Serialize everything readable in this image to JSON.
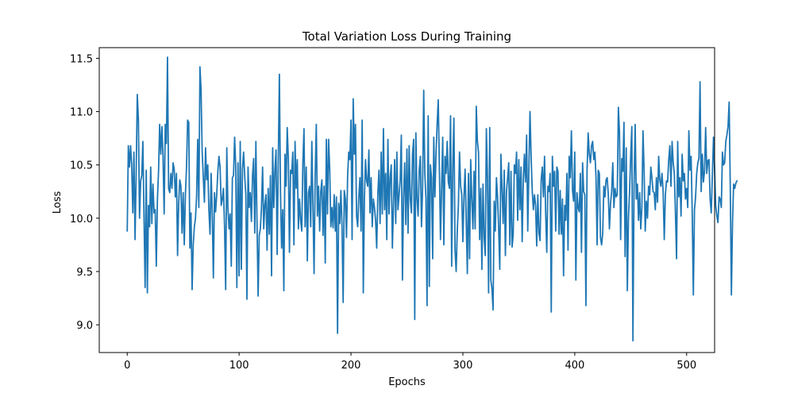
{
  "chart_data": {
    "type": "line",
    "title": "Total Variation Loss During Training",
    "xlabel": "Epochs",
    "ylabel": "Loss",
    "xlim": [
      -25,
      525
    ],
    "ylim": [
      8.74,
      11.6
    ],
    "xticks": [
      0,
      100,
      200,
      300,
      400,
      500
    ],
    "xtick_labels": [
      "0",
      "100",
      "200",
      "300",
      "400",
      "500"
    ],
    "yticks": [
      9.0,
      9.5,
      10.0,
      10.5,
      11.0,
      11.5
    ],
    "ytick_labels": [
      "9.0",
      "9.5",
      "10.0",
      "10.5",
      "11.0",
      "11.5"
    ],
    "grid": false,
    "series": [
      {
        "color": "#1f77b4",
        "x_start": 0,
        "x_step": 1,
        "values": [
          9.88,
          10.68,
          10.48,
          10.68,
          10.5,
          10.05,
          10.62,
          9.8,
          10.42,
          11.16,
          10.92,
          10.0,
          10.35,
          10.4,
          10.72,
          10.02,
          9.35,
          10.45,
          9.3,
          10.12,
          9.92,
          10.48,
          9.95,
          10.32,
          10.05,
          10.08,
          9.55,
          10.18,
          10.44,
          10.88,
          10.6,
          10.86,
          10.58,
          10.04,
          10.88,
          10.7,
          11.51,
          10.28,
          10.24,
          10.42,
          10.28,
          10.52,
          10.46,
          10.2,
          10.42,
          9.65,
          10.14,
          10.36,
          10.3,
          9.86,
          10.24,
          9.75,
          10.22,
          10.48,
          10.92,
          10.9,
          9.72,
          10.05,
          9.33,
          9.75,
          9.92,
          10.0,
          10.2,
          10.74,
          10.1,
          11.42,
          11.2,
          10.62,
          10.38,
          10.15,
          10.66,
          10.36,
          10.5,
          10.08,
          9.85,
          10.42,
          10.05,
          9.44,
          10.24,
          10.06,
          10.22,
          10.44,
          10.58,
          10.48,
          10.12,
          10.18,
          10.28,
          9.92,
          9.33,
          10.66,
          10.1,
          9.9,
          10.04,
          9.55,
          10.38,
          10.4,
          10.76,
          10.48,
          9.35,
          10.52,
          9.46,
          10.72,
          9.52,
          10.46,
          10.62,
          10.4,
          10.22,
          9.24,
          10.48,
          10.1,
          10.24,
          9.97,
          10.4,
          10.56,
          9.86,
          10.72,
          9.96,
          9.27,
          9.84,
          9.9,
          10.1,
          10.48,
          9.9,
          10.12,
          10.22,
          9.7,
          10.28,
          9.85,
          10.4,
          9.46,
          10.66,
          10.1,
          10.45,
          10.64,
          9.66,
          10.52,
          11.35,
          10.24,
          9.72,
          10.08,
          9.32,
          10.6,
          10.3,
          10.85,
          10.56,
          9.68,
          10.45,
          10.42,
          10.62,
          9.75,
          10.72,
          10.28,
          10.55,
          9.9,
          10.18,
          9.98,
          9.88,
          10.52,
          10.84,
          9.92,
          10.48,
          9.6,
          10.24,
          10.3,
          9.92,
          10.72,
          10.12,
          9.48,
          10.4,
          10.88,
          10.02,
          10.3,
          9.88,
          10.25,
          10.36,
          9.84,
          10.3,
          9.58,
          10.74,
          10.04,
          10.74,
          10.45,
          9.92,
          10.1,
          9.91,
          10.22,
          9.88,
          10.2,
          8.92,
          10.14,
          9.95,
          10.26,
          9.92,
          9.21,
          10.26,
          10.18,
          9.82,
          10.4,
          10.62,
          10.55,
          10.92,
          9.8,
          11.12,
          10.6,
          10.88,
          10.02,
          9.92,
          10.2,
          10.38,
          9.88,
          10.92,
          9.3,
          10.18,
          10.55,
          10.35,
          10.3,
          10.64,
          10.05,
          10.38,
          9.92,
          10.18,
          10.1,
          9.98,
          9.72,
          10.22,
          10.45,
          9.95,
          10.62,
          10.04,
          10.84,
          10.08,
          10.42,
          9.8,
          10.74,
          10.04,
          10.38,
          10.5,
          9.72,
          10.12,
          10.55,
          9.95,
          10.62,
          10.08,
          10.22,
          10.36,
          10.78,
          9.42,
          10.2,
          10.52,
          9.94,
          10.65,
          9.86,
          10.68,
          10.18,
          10.05,
          10.6,
          10.74,
          9.05,
          10.8,
          10.18,
          10.02,
          10.45,
          10.58,
          9.92,
          10.28,
          11.2,
          10.42,
          10.18,
          9.18,
          10.96,
          9.36,
          10.5,
          10.38,
          9.62,
          10.76,
          10.2,
          10.6,
          10.88,
          11.11,
          10.48,
          9.8,
          10.28,
          10.76,
          9.75,
          10.58,
          10.42,
          10.72,
          10.34,
          10.28,
          10.96,
          9.55,
          10.48,
          10.94,
          9.7,
          9.5,
          9.88,
          10.12,
          10.62,
          10.3,
          10.22,
          9.78,
          10.2,
          10.46,
          9.98,
          9.48,
          10.42,
          9.62,
          10.55,
          10.18,
          9.9,
          10.44,
          9.9,
          11.05,
          10.72,
          10.62,
          9.8,
          10.28,
          9.52,
          10.32,
          9.82,
          9.65,
          10.84,
          10.38,
          9.3,
          10.85,
          9.42,
          9.34,
          9.14,
          10.16,
          9.88,
          10.38,
          10.2,
          9.9,
          9.52,
          10.6,
          10.28,
          9.95,
          10.45,
          9.65,
          10.25,
          10.38,
          10.52,
          9.75,
          10.44,
          9.73,
          9.85,
          10.5,
          10.42,
          10.62,
          9.98,
          10.55,
          10.08,
          10.48,
          9.78,
          10.36,
          10.6,
          10.34,
          10.78,
          9.88,
          10.45,
          11.0,
          10.58,
          10.26,
          10.08,
          10.22,
          10.12,
          9.74,
          10.22,
          9.86,
          9.79,
          10.36,
          10.48,
          10.2,
          10.58,
          10.05,
          9.68,
          10.3,
          10.25,
          10.42,
          9.12,
          10.58,
          10.3,
          10.44,
          9.88,
          10.48,
          10.44,
          9.85,
          10.26,
          9.85,
          10.18,
          9.46,
          10.12,
          9.98,
          10.42,
          9.7,
          10.58,
          10.38,
          10.82,
          10.26,
          10.16,
          10.62,
          9.42,
          10.24,
          10.1,
          10.06,
          10.42,
          9.68,
          10.52,
          10.25,
          10.22,
          9.18,
          10.45,
          10.8,
          10.6,
          10.52,
          10.68,
          10.72,
          10.55,
          10.62,
          10.38,
          9.75,
          10.45,
          10.42,
          9.82,
          9.75,
          9.86,
          10.3,
          10.2,
          10.36,
          10.38,
          10.22,
          9.9,
          10.14,
          10.25,
          10.52,
          10.1,
          10.28,
          10.2,
          10.22,
          11.04,
          10.8,
          9.8,
          10.56,
          10.44,
          10.9,
          9.64,
          10.66,
          9.32,
          10.0,
          10.25,
          10.58,
          10.86,
          8.85,
          10.3,
          10.88,
          10.18,
          10.32,
          9.98,
          10.24,
          9.9,
          10.1,
          10.82,
          10.44,
          9.88,
          10.16,
          10.0,
          10.3,
          10.22,
          10.48,
          10.38,
          10.25,
          10.24,
          10.08,
          10.38,
          10.15,
          10.58,
          10.36,
          10.3,
          10.42,
          10.25,
          9.8,
          10.22,
          10.35,
          10.34,
          10.55,
          10.68,
          10.3,
          10.72,
          10.52,
          10.42,
          10.05,
          9.62,
          10.72,
          10.2,
          10.38,
          10.02,
          10.6,
          10.35,
          10.42,
          10.18,
          10.28,
          10.1,
          10.82,
          10.45,
          10.58,
          10.05,
          9.28,
          10.08,
          10.2,
          10.42,
          10.52,
          10.56,
          11.28,
          10.25,
          10.6,
          10.34,
          10.44,
          10.85,
          10.42,
          10.54,
          10.55,
          10.18,
          10.05,
          10.4,
          10.76,
          10.46,
          10.12,
          10.02,
          9.96,
          10.2,
          10.18,
          10.1,
          10.62,
          10.5,
          10.52,
          10.72,
          10.78,
          10.86,
          11.09,
          10.3,
          9.28,
          9.96,
          10.32,
          10.28,
          10.33,
          10.35
        ]
      }
    ]
  }
}
